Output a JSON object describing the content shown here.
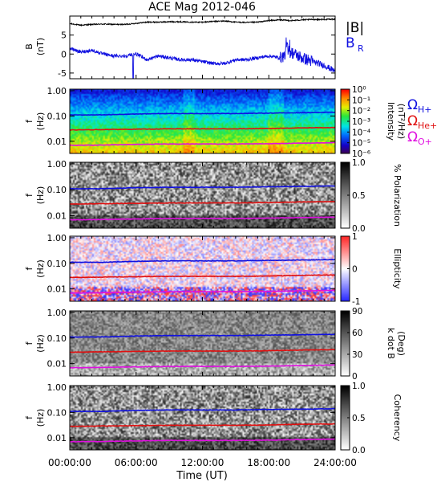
{
  "title": "ACE Mag 2012-046",
  "colors": {
    "blue": "#1010e0",
    "red": "#e01010",
    "magenta": "#e010e0",
    "black": "#000000"
  },
  "x_axis": {
    "label": "Time (UT)",
    "ticks": [
      "00:00:00",
      "06:00:00",
      "12:00:00",
      "18:00:00",
      "24:00:00"
    ],
    "range_hours": [
      0,
      24
    ]
  },
  "panels": [
    {
      "id": "bfield",
      "ylabel": "B",
      "yunits": "(nT)",
      "legend": [
        "|B|",
        "B"
      ],
      "legend_sub": "R",
      "y_ticks": [
        "5",
        "0",
        "-5"
      ]
    },
    {
      "id": "intensity",
      "ylabel": "f",
      "yunits": "(Hz)",
      "y_ticks": [
        "1.00",
        "0.10",
        "0.01"
      ],
      "colorbar_label": "Intensity",
      "colorbar_units": "(nT²/Hz)",
      "colorbar_ticks": [
        "10⁰",
        "10⁻¹",
        "10⁻²",
        "10⁻³",
        "10⁻⁴",
        "10⁻⁵",
        "10⁻⁶"
      ],
      "gyro_labels": [
        {
          "sym": "Ω",
          "sub": "H+",
          "color": "blue"
        },
        {
          "sym": "Ω",
          "sub": "He+",
          "color": "red"
        },
        {
          "sym": "Ω",
          "sub": "O+",
          "color": "magenta"
        }
      ]
    },
    {
      "id": "polarization",
      "ylabel": "f",
      "yunits": "(Hz)",
      "y_ticks": [
        "1.00",
        "0.10",
        "0.01"
      ],
      "colorbar_label": "% Polarization",
      "colorbar_ticks": [
        "1.0",
        "0.5",
        "0.0"
      ]
    },
    {
      "id": "ellipticity",
      "ylabel": "f",
      "yunits": "(Hz)",
      "y_ticks": [
        "1.00",
        "0.10",
        "0.01"
      ],
      "colorbar_label": "Ellipticity",
      "colorbar_ticks": [
        "1",
        "0",
        "-1"
      ]
    },
    {
      "id": "kdotb",
      "ylabel": "f",
      "yunits": "(Hz)",
      "y_ticks": [
        "1.00",
        "0.10",
        "0.01"
      ],
      "colorbar_label": "k dot B",
      "colorbar_units": "(Deg)",
      "colorbar_ticks": [
        "90",
        "60",
        "30",
        "0"
      ]
    },
    {
      "id": "coherency",
      "ylabel": "f",
      "yunits": "(Hz)",
      "y_ticks": [
        "1.00",
        "0.10",
        "0.01"
      ],
      "colorbar_label": "Coherency",
      "colorbar_ticks": [
        "1.0",
        "0.5",
        "0.0"
      ]
    }
  ],
  "chart_data": [
    {
      "type": "line",
      "title": "ACE Mag 2012-046",
      "xlabel": "Time (UT)",
      "ylabel": "B (nT)",
      "xlim": [
        0,
        24
      ],
      "ylim": [
        -6.5,
        10
      ],
      "series": [
        {
          "name": "|B|",
          "color": "#000000",
          "x": [
            0,
            1,
            2,
            3,
            4,
            5,
            6,
            7,
            8,
            9,
            10,
            11,
            12,
            13,
            14,
            15,
            16,
            17,
            18,
            19,
            20,
            21,
            22,
            23,
            24
          ],
          "y": [
            8.0,
            7.6,
            7.8,
            7.9,
            7.8,
            7.8,
            8.1,
            8.4,
            8.4,
            8.5,
            8.5,
            8.4,
            8.4,
            8.6,
            8.7,
            8.4,
            8.3,
            8.4,
            8.8,
            9.0,
            8.8,
            9.0,
            9.1,
            9.1,
            9.2
          ]
        },
        {
          "name": "B",
          "sub": "R",
          "color": "#1010e0",
          "x": [
            0,
            1,
            2,
            3,
            4,
            5,
            6,
            7,
            8,
            9,
            10,
            11,
            12,
            13,
            14,
            15,
            16,
            17,
            18,
            19,
            20,
            21,
            22,
            23,
            24
          ],
          "y": [
            1.5,
            0.5,
            1.0,
            0.0,
            -0.5,
            -0.5,
            0.0,
            -1.5,
            -0.5,
            -1.0,
            -1.5,
            -1.5,
            -2.0,
            -2.5,
            -2.5,
            -1.5,
            -1.5,
            -1.0,
            -0.5,
            -1.0,
            0.5,
            -1.0,
            -2.0,
            -3.0,
            -4.5
          ]
        }
      ]
    },
    {
      "type": "heatmap",
      "name": "spectral panels",
      "xlabel": "Time (UT)",
      "ylabel": "f (Hz)",
      "yscale": "log",
      "ylim": [
        0.0033,
        1.15
      ],
      "panels": [
        "Intensity",
        "% Polarization",
        "Ellipticity",
        "k dot B",
        "Coherency"
      ],
      "series": [
        {
          "name": "Ω H+",
          "color": "#1010e0",
          "x": [
            0,
            3,
            6,
            9,
            12,
            15,
            18,
            21,
            24
          ],
          "y": [
            0.11,
            0.11,
            0.12,
            0.125,
            0.125,
            0.125,
            0.13,
            0.135,
            0.14
          ]
        },
        {
          "name": "Ω He+",
          "color": "#e01010",
          "x": [
            0,
            3,
            6,
            9,
            12,
            15,
            18,
            21,
            24
          ],
          "y": [
            0.028,
            0.029,
            0.03,
            0.031,
            0.031,
            0.031,
            0.032,
            0.034,
            0.035
          ]
        },
        {
          "name": "Ω O+",
          "color": "#e010e0",
          "x": [
            0,
            3,
            6,
            9,
            12,
            15,
            18,
            21,
            24
          ],
          "y": [
            0.0069,
            0.0071,
            0.0075,
            0.0078,
            0.0078,
            0.0078,
            0.008,
            0.0084,
            0.0088
          ]
        }
      ]
    }
  ]
}
